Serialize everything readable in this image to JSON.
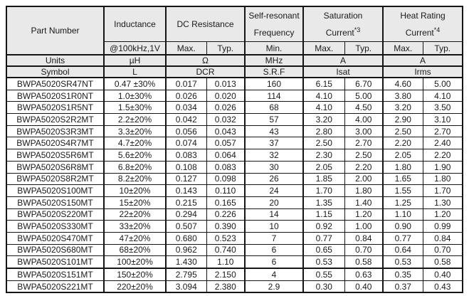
{
  "table": {
    "header": {
      "part_number": "Part Number",
      "inductance": "Inductance",
      "inductance_sub": "@100kHz,1V",
      "dc_resistance": "DC Resistance",
      "self_resonant_line1": "Self-resonant",
      "self_resonant_line2": "Frequency",
      "saturation_line1": "Saturation",
      "saturation_line2": "Current",
      "saturation_sup": "*3",
      "heat_line1": "Heat Rating",
      "heat_line2": "Current",
      "heat_sup": "*4",
      "max_label": "Max.",
      "typ_label": "Typ.",
      "min_label": "Min."
    },
    "units_row": {
      "label": "Units",
      "inductance": "µH",
      "dcr": "Ω",
      "srf": "MHz",
      "isat": "A",
      "irms": "A"
    },
    "symbol_row": {
      "label": "Symbol",
      "inductance": "L",
      "dcr": "DCR",
      "srf": "S.R.F",
      "isat": "Isat",
      "irms": "Irms"
    },
    "columns": [
      "Part Number",
      "Inductance",
      "DCR Max.",
      "DCR Typ.",
      "SRF Min.",
      "Isat Max.",
      "Isat Typ.",
      "Irms Max.",
      "Irms Typ."
    ],
    "rows": [
      [
        "BWPA5020SR47NT",
        "0.47 ±30%",
        "0.017",
        "0.013",
        "160",
        "6.15",
        "6.70",
        "4.60",
        "5.00"
      ],
      [
        "BWPA5020S1R0NT",
        "1.0±30%",
        "0.026",
        "0.020",
        "114",
        "4.10",
        "5.00",
        "3.80",
        "4.10"
      ],
      [
        "BWPA5020S1R5NT",
        "1.5±30%",
        "0.034",
        "0.026",
        "68",
        "4.10",
        "4.50",
        "3.20",
        "3.50"
      ],
      [
        "BWPA5020S2R2MT",
        "2.2±20%",
        "0.042",
        "0.032",
        "57",
        "3.20",
        "4.00",
        "2.90",
        "3.10"
      ],
      [
        "BWPA5020S3R3MT",
        "3.3±20%",
        "0.056",
        "0.043",
        "43",
        "2.80",
        "3.00",
        "2.50",
        "2.70"
      ],
      [
        "BWPA5020S4R7MT",
        "4.7±20%",
        "0.074",
        "0.057",
        "37",
        "2.50",
        "2.70",
        "2.20",
        "2.40"
      ],
      [
        "BWPA5020S5R6MT",
        "5.6±20%",
        "0.083",
        "0.064",
        "32",
        "2.30",
        "2.50",
        "2.05",
        "2.20"
      ],
      [
        "BWPA5020S6R8MT",
        "6.8±20%",
        "0.108",
        "0.083",
        "30",
        "2.05",
        "2.20",
        "1.80",
        "1.90"
      ],
      [
        "BWPA5020S8R2MT",
        "8.2±20%",
        "0.127",
        "0.098",
        "26",
        "1.85",
        "2.00",
        "1.65",
        "1.80"
      ],
      [
        "BWPA5020S100MT",
        "10±20%",
        "0.143",
        "0.110",
        "24",
        "1.70",
        "1.80",
        "1.55",
        "1.70"
      ],
      [
        "BWPA5020S150MT",
        "15±20%",
        "0.215",
        "0.165",
        "20",
        "1.35",
        "1.40",
        "1.25",
        "1.30"
      ],
      [
        "BWPA5020S220MT",
        "22±20%",
        "0.294",
        "0.226",
        "14",
        "1.15",
        "1.20",
        "1.10",
        "1.20"
      ],
      [
        "BWPA5020S330MT",
        "33±20%",
        "0.507",
        "0.390",
        "10",
        "0.92",
        "1.00",
        "0.90",
        "0.99"
      ],
      [
        "BWPA5020S470MT",
        "47±20%",
        "0.680",
        "0.523",
        "7",
        "0.77",
        "0.84",
        "0.77",
        "0.84"
      ],
      [
        "BWPA5020S680MT",
        "68±20%",
        "0.962",
        "0.740",
        "6",
        "0.65",
        "0.70",
        "0.64",
        "0.70"
      ],
      [
        "BWPA5020S101MT",
        "100±20%",
        "1.430",
        "1.10",
        "6",
        "0.53",
        "0.58",
        "0.53",
        "0.58"
      ],
      [
        "BWPA5020S151MT",
        "150±20%",
        "2.795",
        "2.150",
        "4",
        "0.55",
        "0.63",
        "0.35",
        "0.40"
      ],
      [
        "BWPA5020S221MT",
        "220±20%",
        "3.094",
        "2.380",
        "2.9",
        "0.30",
        "0.40",
        "0.37",
        "0.43"
      ]
    ],
    "thick_border_before_row_index": 16
  },
  "colors": {
    "header_bg": "#e9e9e9",
    "border": "#151515",
    "text": "#1a1a1a",
    "page_bg": "#ffffff"
  }
}
